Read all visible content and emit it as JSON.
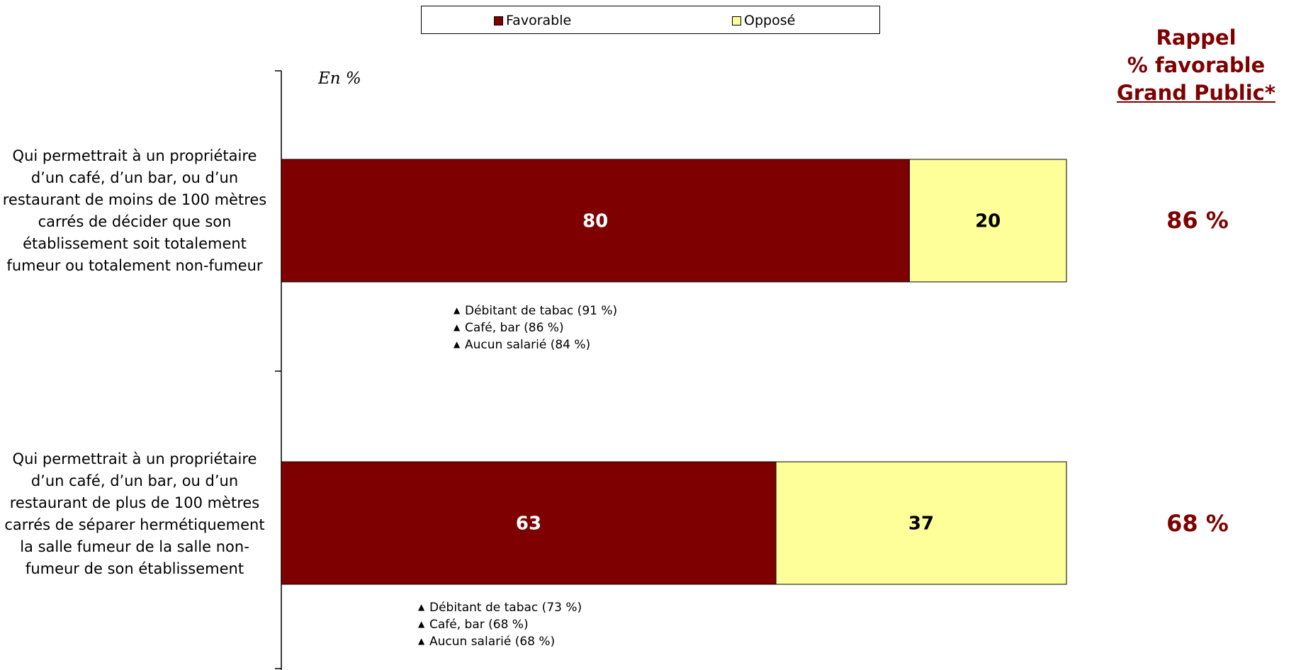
{
  "legend": {
    "favorable": "Favorable",
    "oppose": "Opposé"
  },
  "unit_label": "En %",
  "side_title": {
    "line1": "Rappel",
    "line2": "% favorable",
    "line3": "Grand Public*"
  },
  "rows": [
    {
      "label": "Qui permettrait à un propriétaire d’un café, d’un bar, ou d’un restaurant de moins de 100 mètres carrés de décider que son établissement soit totalement fumeur ou totalement non-fumeur",
      "rappel": "86 %",
      "notes": [
        "Débitant de tabac (91 %)",
        "Café, bar (86 %)",
        "Aucun salarié (84 %)"
      ]
    },
    {
      "label": "Qui permettrait à un propriétaire d’un café, d’un bar, ou d’un restaurant de plus de 100 mètres carrés de séparer hermétiquement la salle fumeur de la salle non-fumeur de son établissement",
      "rappel": "68 %",
      "notes": [
        "Débitant de tabac (73 %)",
        "Café, bar (68 %)",
        "Aucun salarié (68 %)"
      ]
    }
  ],
  "colors": {
    "favorable": "#7f0000",
    "oppose": "#ffff99",
    "accent": "#7f0000"
  },
  "chart_data": {
    "type": "bar",
    "orientation": "horizontal",
    "stacked": true,
    "categories": [
      "Qui permettrait à un propriétaire d’un café, d’un bar, ou d’un restaurant de moins de 100 mètres carrés de décider que son établissement soit totalement fumeur ou totalement non-fumeur",
      "Qui permettrait à un propriétaire d’un café, d’un bar, ou d’un restaurant de plus de 100 mètres carrés de séparer hermétiquement la salle fumeur de la salle non-fumeur de son établissement"
    ],
    "series": [
      {
        "name": "Favorable",
        "values": [
          80,
          63
        ]
      },
      {
        "name": "Opposé",
        "values": [
          20,
          37
        ]
      }
    ],
    "xlim": [
      0,
      100
    ],
    "legend_position": "top",
    "grid": false,
    "title": "",
    "xlabel": "",
    "ylabel": ""
  }
}
